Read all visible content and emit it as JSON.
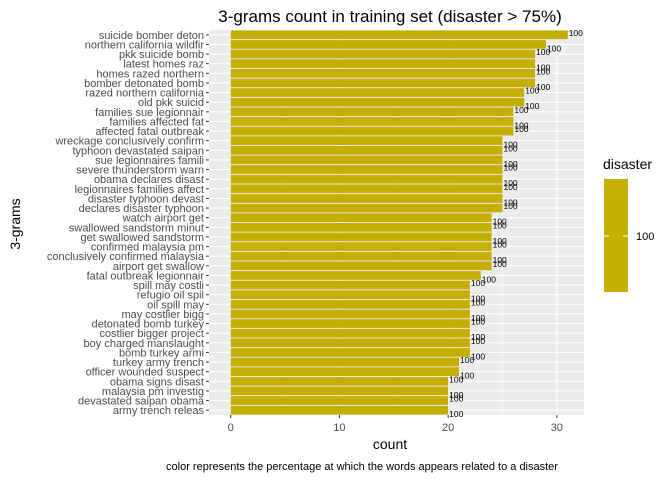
{
  "chart_data": {
    "type": "bar",
    "orientation": "horizontal",
    "title": "3-grams count in training set (disaster > 75%)",
    "xlabel": "count",
    "ylabel": "3-grams",
    "caption": "color represents the percentage at which the words appears related to a disaster",
    "xlim": [
      -2,
      32.5
    ],
    "xticks": [
      0,
      10,
      20,
      30
    ],
    "grid": true,
    "background": "#EBEBEB",
    "bar_color": "#C4AE00",
    "legend": {
      "title": "disaster",
      "label": "100",
      "position": "right"
    },
    "categories": [
      "suicide bomber deton",
      "northern california wildfir",
      "pkk suicide bomb",
      "latest homes raz",
      "homes razed northern",
      "bomber detonated bomb",
      "razed northern california",
      "old pkk suicid",
      "families sue legionnair",
      "families affected fat",
      "affected fatal outbreak",
      "wreckage conclusively confirm",
      "typhoon devastated saipan",
      "sue legionnaires famili",
      "severe thunderstorm warn",
      "obama declares disast",
      "legionnaires families affect",
      "disaster typhoon devast",
      "declares disaster typhoon",
      "watch airport get",
      "swallowed sandstorm minut",
      "get swallowed sandstorm",
      "confirmed malaysia pm",
      "conclusively confirmed malaysia",
      "airport get swallow",
      "fatal outbreak legionnair",
      "spill may costli",
      "refugio oil spil",
      "oil spill may",
      "may costlier bigg",
      "detonated bomb turkey",
      "costlier bigger project",
      "boy charged manslaught",
      "bomb turkey armi",
      "turkey army trench",
      "officer wounded suspect",
      "obama signs disast",
      "malaysia pm investig",
      "devastated saipan obama",
      "army trench releas"
    ],
    "values": [
      31,
      29,
      28,
      28,
      28,
      28,
      27,
      27,
      26,
      26,
      26,
      25,
      25,
      25,
      25,
      25,
      25,
      25,
      25,
      24,
      24,
      24,
      24,
      24,
      24,
      23,
      22,
      22,
      22,
      22,
      22,
      22,
      22,
      22,
      21,
      21,
      20,
      20,
      20,
      20
    ],
    "data_labels": [
      "100",
      "100",
      "100",
      "100",
      "100",
      "100",
      "100",
      "100",
      "100",
      "100",
      "100",
      "100",
      "100",
      "100",
      "100",
      "100",
      "100",
      "100",
      "100",
      "100",
      "100",
      "100",
      "100",
      "100",
      "100",
      "100",
      "100",
      "100",
      "100",
      "100",
      "100",
      "100",
      "100",
      "100",
      "100",
      "100",
      "100",
      "100",
      "100",
      "100"
    ]
  }
}
